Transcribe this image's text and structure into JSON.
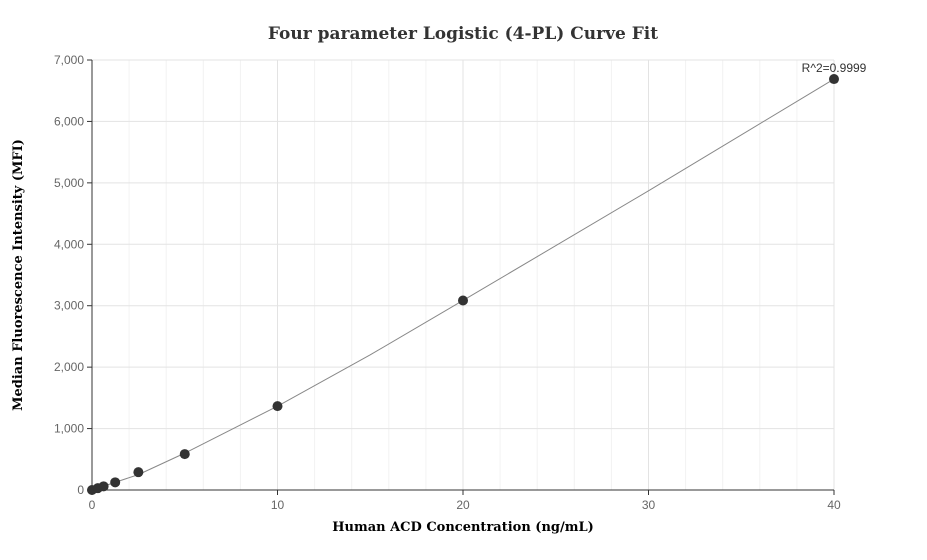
{
  "chart_data": {
    "type": "scatter",
    "title": "Four parameter Logistic (4-PL) Curve Fit",
    "xlabel": "Human ACD Concentration (ng/mL)",
    "ylabel": "Median Fluorescence Intensity (MFI)",
    "xlim": [
      0,
      40
    ],
    "ylim": [
      0,
      7000
    ],
    "x_ticks": [
      0,
      10,
      20,
      30,
      40
    ],
    "y_ticks": [
      0,
      1000,
      2000,
      3000,
      4000,
      5000,
      6000,
      7000
    ],
    "x_tick_labels": [
      "0",
      "10",
      "20",
      "30",
      "40"
    ],
    "y_tick_labels": [
      "0",
      "1,000",
      "2,000",
      "3,000",
      "4,000",
      "5,000",
      "6,000",
      "7,000"
    ],
    "grid": true,
    "series": [
      {
        "points": [
          {
            "x": 0,
            "y": 0
          },
          {
            "x": 0.313,
            "y": 30
          },
          {
            "x": 0.625,
            "y": 60
          },
          {
            "x": 1.25,
            "y": 125
          },
          {
            "x": 2.5,
            "y": 290
          },
          {
            "x": 5,
            "y": 585
          },
          {
            "x": 10,
            "y": 1365
          },
          {
            "x": 20,
            "y": 3085
          },
          {
            "x": 40,
            "y": 6690
          }
        ],
        "color": "#333333"
      }
    ],
    "fit_curve": {
      "points": [
        {
          "x": 0,
          "y": 0
        },
        {
          "x": 2.5,
          "y": 250
        },
        {
          "x": 5,
          "y": 600
        },
        {
          "x": 10,
          "y": 1365
        },
        {
          "x": 15,
          "y": 2200
        },
        {
          "x": 20,
          "y": 3085
        },
        {
          "x": 30,
          "y": 4870
        },
        {
          "x": 40,
          "y": 6690
        }
      ],
      "color": "#888888"
    },
    "annotation": "R^2=0.9999"
  }
}
